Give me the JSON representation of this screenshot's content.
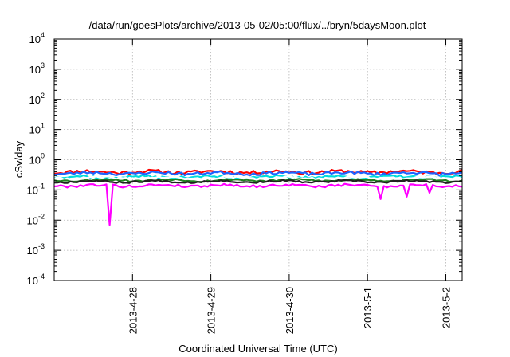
{
  "chart_data": {
    "type": "line",
    "title": "/data/run/goesPlots/archive/2013-05-02/05:00/flux/../bryn/5daysMoon.plot",
    "xlabel": "Coordinated Universal Time (UTC)",
    "ylabel": "cSv/day",
    "y_scale": "log",
    "ylim": [
      0.0001,
      10000
    ],
    "xlim": [
      "2013-04-27 00:00",
      "2013-05-02 05:00"
    ],
    "x_ticks": [
      "2013-4-28",
      "2013-4-29",
      "2013-4-30",
      "2013-5-1",
      "2013-5-2"
    ],
    "y_ticks": [
      {
        "base": "10",
        "exp": "-4"
      },
      {
        "base": "10",
        "exp": "-3"
      },
      {
        "base": "10",
        "exp": "-2"
      },
      {
        "base": "10",
        "exp": "-1"
      },
      {
        "base": "10",
        "exp": "0"
      },
      {
        "base": "10",
        "exp": "1"
      },
      {
        "base": "10",
        "exp": "2"
      },
      {
        "base": "10",
        "exp": "3"
      },
      {
        "base": "10",
        "exp": "4"
      }
    ],
    "grid": true,
    "legend": "none",
    "sample_interval_hours": 1,
    "series": [
      {
        "color": "#ff0000",
        "level": 0.4,
        "variation": 0.13,
        "seed": 11,
        "dips": []
      },
      {
        "color": "#1e64ff",
        "level": 0.36,
        "variation": 0.11,
        "seed": 23,
        "dips": []
      },
      {
        "color": "#00dcdc",
        "level": 0.27,
        "variation": 0.09,
        "seed": 37,
        "dips": []
      },
      {
        "color": "#ffffff",
        "level": 0.25,
        "variation": 0.08,
        "seed": 41,
        "dips": []
      },
      {
        "color": "#208020",
        "level": 0.21,
        "variation": 0.07,
        "seed": 53,
        "dips": []
      },
      {
        "color": "#202020",
        "level": 0.19,
        "variation": 0.07,
        "seed": 67,
        "dips": []
      },
      {
        "color": "#ff00ff",
        "level": 0.14,
        "variation": 0.09,
        "seed": 79,
        "dips": [
          {
            "time": "2013-04-27 17:00",
            "value": 0.007
          },
          {
            "time": "2013-05-01 04:00",
            "value": 0.05
          },
          {
            "time": "2013-05-01 12:00",
            "value": 0.06
          },
          {
            "time": "2013-05-01 19:00",
            "value": 0.08
          }
        ]
      }
    ]
  }
}
